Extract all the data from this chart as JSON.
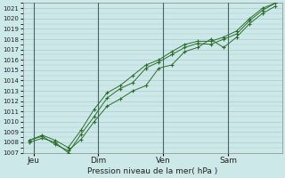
{
  "background_color": "#cce8e8",
  "grid_color": "#aacccc",
  "line_color": "#2d6e2d",
  "marker_color": "#2d6e2d",
  "xlabel": "Pression niveau de la mer( hPa )",
  "ylim": [
    1007,
    1021.5
  ],
  "ytick_min": 1007,
  "ytick_max": 1021,
  "day_labels": [
    "Jeu",
    "Dim",
    "Ven",
    "Sam"
  ],
  "day_positions": [
    0.5,
    3.5,
    6.5,
    9.5
  ],
  "xmin": 0,
  "xmax": 12,
  "series1_x": [
    0.3,
    0.9,
    1.5,
    2.1,
    2.7,
    3.3,
    3.9,
    4.5,
    5.1,
    5.7,
    6.3,
    6.9,
    7.5,
    8.1,
    8.7,
    9.3,
    9.9,
    10.5,
    11.1,
    11.7
  ],
  "series1_y": [
    1008.2,
    1008.6,
    1007.8,
    1007.2,
    1008.3,
    1010.0,
    1011.5,
    1012.2,
    1013.0,
    1013.5,
    1015.2,
    1015.5,
    1016.8,
    1017.2,
    1018.0,
    1017.2,
    1018.2,
    1019.5,
    1020.5,
    1021.2
  ],
  "series2_x": [
    0.3,
    0.9,
    1.5,
    2.1,
    2.7,
    3.3,
    3.9,
    4.5,
    5.1,
    5.7,
    6.3,
    6.9,
    7.5,
    8.1,
    8.7,
    9.3,
    9.9,
    10.5,
    11.1,
    11.7
  ],
  "series2_y": [
    1008.0,
    1008.4,
    1008.0,
    1007.0,
    1008.8,
    1010.5,
    1012.3,
    1013.2,
    1013.8,
    1015.2,
    1015.8,
    1016.5,
    1017.2,
    1017.6,
    1017.5,
    1018.0,
    1018.5,
    1019.8,
    1020.8,
    1021.5
  ],
  "series3_x": [
    0.3,
    0.9,
    1.5,
    2.1,
    2.7,
    3.3,
    3.9,
    4.5,
    5.1,
    5.7,
    6.3,
    6.9,
    7.5,
    8.1,
    8.7,
    9.3,
    9.9,
    10.5,
    11.1,
    11.7
  ],
  "series3_y": [
    1008.2,
    1008.7,
    1008.2,
    1007.5,
    1009.2,
    1011.2,
    1012.8,
    1013.5,
    1014.5,
    1015.5,
    1016.0,
    1016.8,
    1017.5,
    1017.8,
    1017.8,
    1018.2,
    1018.8,
    1020.0,
    1021.0,
    1021.5
  ]
}
